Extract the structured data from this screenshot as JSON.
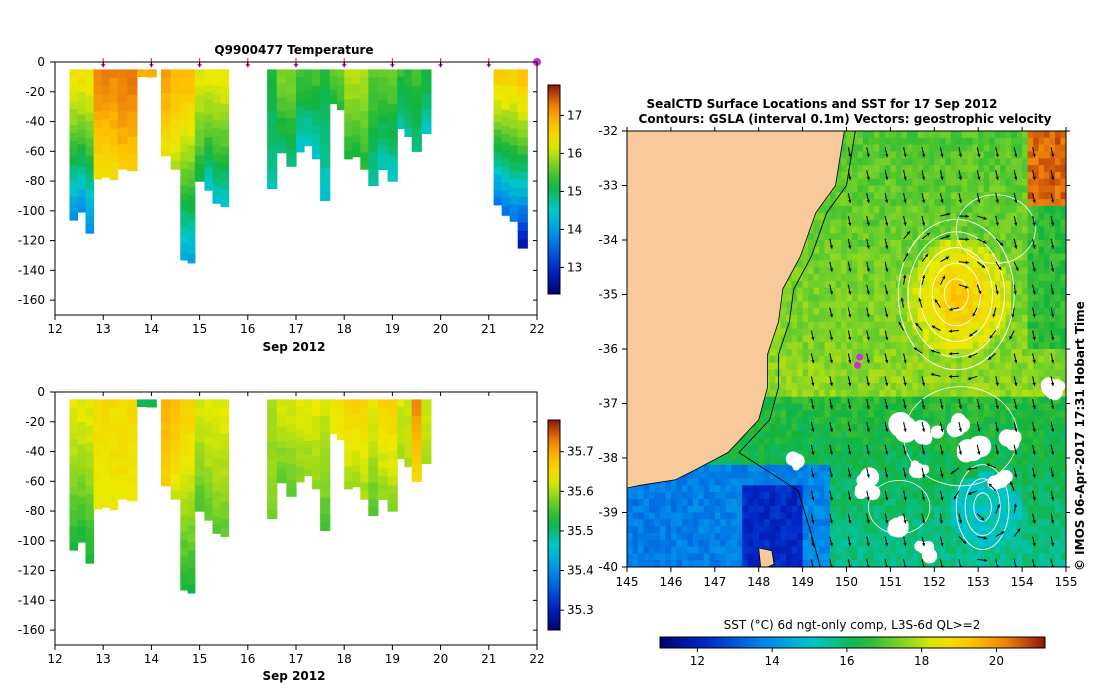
{
  "chart_data": [
    {
      "type": "heatmap",
      "panel": "depth-time",
      "title": "Q9900477  Temperature",
      "xlabel": "Sep 2012",
      "ylabel": "",
      "xlim": [
        12,
        22
      ],
      "ylim": [
        -170,
        0
      ],
      "xticks": [
        12,
        13,
        14,
        15,
        16,
        17,
        18,
        19,
        20,
        21,
        22
      ],
      "yticks": [
        0,
        -20,
        -40,
        -60,
        -80,
        -100,
        -120,
        -140,
        -160
      ],
      "markers_x": [
        13,
        14,
        15,
        16,
        17,
        18,
        19,
        20,
        21,
        22
      ],
      "colorbar": {
        "ticks": [
          13,
          14,
          15,
          16,
          17
        ],
        "range": [
          12.3,
          17.8
        ]
      },
      "profiles": [
        {
          "x0": 12.3,
          "x1": 12.8,
          "depth": 115,
          "surf": 16.4,
          "deep": 13.7
        },
        {
          "x0": 12.8,
          "x1": 13.3,
          "depth": 79,
          "surf": 17.2,
          "deep": 16.3
        },
        {
          "x0": 13.3,
          "x1": 13.7,
          "depth": 73,
          "surf": 17.3,
          "deep": 16.6
        },
        {
          "x0": 13.7,
          "x1": 14.1,
          "depth": 10,
          "surf": 17.0,
          "deep": 16.8
        },
        {
          "x0": 14.2,
          "x1": 14.4,
          "depth": 63,
          "surf": 17.0,
          "deep": 16.3
        },
        {
          "x0": 14.4,
          "x1": 14.6,
          "depth": 72,
          "surf": 16.9,
          "deep": 15.9
        },
        {
          "x0": 14.6,
          "x1": 14.9,
          "depth": 135,
          "surf": 16.8,
          "deep": 14.0
        },
        {
          "x0": 14.9,
          "x1": 15.1,
          "depth": 80,
          "surf": 16.2,
          "deep": 15.0
        },
        {
          "x0": 15.1,
          "x1": 15.6,
          "depth": 97,
          "surf": 16.3,
          "deep": 14.3
        },
        {
          "x0": 16.4,
          "x1": 16.6,
          "depth": 85,
          "surf": 15.2,
          "deep": 14.6
        },
        {
          "x0": 16.6,
          "x1": 17.0,
          "depth": 70,
          "surf": 15.7,
          "deep": 14.8
        },
        {
          "x0": 17.0,
          "x1": 17.5,
          "depth": 65,
          "surf": 15.4,
          "deep": 14.3
        },
        {
          "x0": 17.5,
          "x1": 17.7,
          "depth": 93,
          "surf": 15.2,
          "deep": 14.4
        },
        {
          "x0": 17.7,
          "x1": 18.0,
          "depth": 32,
          "surf": 15.6,
          "deep": 15.1
        },
        {
          "x0": 18.0,
          "x1": 18.5,
          "depth": 72,
          "surf": 16.0,
          "deep": 15.1
        },
        {
          "x0": 18.5,
          "x1": 18.7,
          "depth": 83,
          "surf": 15.5,
          "deep": 14.6
        },
        {
          "x0": 18.7,
          "x1": 19.1,
          "depth": 80,
          "surf": 15.6,
          "deep": 14.4
        },
        {
          "x0": 19.1,
          "x1": 19.4,
          "depth": 50,
          "surf": 15.3,
          "deep": 14.6
        },
        {
          "x0": 19.4,
          "x1": 19.6,
          "depth": 60,
          "surf": 15.4,
          "deep": 14.7
        },
        {
          "x0": 19.6,
          "x1": 19.8,
          "depth": 48,
          "surf": 15.2,
          "deep": 14.4
        },
        {
          "x0": 21.1,
          "x1": 21.6,
          "depth": 107,
          "surf": 16.6,
          "deep": 13.4
        },
        {
          "x0": 21.6,
          "x1": 21.8,
          "depth": 125,
          "surf": 16.8,
          "deep": 12.4
        }
      ]
    },
    {
      "type": "heatmap",
      "panel": "depth-time",
      "title": "",
      "xlabel": "Sep 2012",
      "ylabel": "",
      "xlim": [
        12,
        22
      ],
      "ylim": [
        -170,
        0
      ],
      "xticks": [
        12,
        13,
        14,
        15,
        16,
        17,
        18,
        19,
        20,
        21,
        22
      ],
      "yticks": [
        0,
        -20,
        -40,
        -60,
        -80,
        -100,
        -120,
        -140,
        -160
      ],
      "colorbar": {
        "ticks": [
          35.3,
          35.4,
          35.5,
          35.6,
          35.7
        ],
        "range": [
          35.25,
          35.78
        ]
      },
      "profiles": [
        {
          "x0": 12.3,
          "x1": 12.8,
          "depth": 115,
          "surf": 35.63,
          "deep": 35.52
        },
        {
          "x0": 12.8,
          "x1": 13.3,
          "depth": 79,
          "surf": 35.65,
          "deep": 35.63
        },
        {
          "x0": 13.3,
          "x1": 13.7,
          "depth": 73,
          "surf": 35.65,
          "deep": 35.64
        },
        {
          "x0": 13.7,
          "x1": 14.1,
          "depth": 10,
          "surf": 35.52,
          "deep": 35.52
        },
        {
          "x0": 14.2,
          "x1": 14.4,
          "depth": 63,
          "surf": 35.69,
          "deep": 35.66
        },
        {
          "x0": 14.4,
          "x1": 14.6,
          "depth": 72,
          "surf": 35.69,
          "deep": 35.61
        },
        {
          "x0": 14.6,
          "x1": 14.9,
          "depth": 135,
          "surf": 35.66,
          "deep": 35.52
        },
        {
          "x0": 14.9,
          "x1": 15.1,
          "depth": 80,
          "surf": 35.62,
          "deep": 35.55
        },
        {
          "x0": 15.1,
          "x1": 15.6,
          "depth": 97,
          "surf": 35.63,
          "deep": 35.56
        },
        {
          "x0": 16.4,
          "x1": 16.6,
          "depth": 85,
          "surf": 35.6,
          "deep": 35.58
        },
        {
          "x0": 16.6,
          "x1": 17.0,
          "depth": 70,
          "surf": 35.62,
          "deep": 35.56
        },
        {
          "x0": 17.0,
          "x1": 17.5,
          "depth": 65,
          "surf": 35.63,
          "deep": 35.58
        },
        {
          "x0": 17.5,
          "x1": 17.7,
          "depth": 93,
          "surf": 35.62,
          "deep": 35.55
        },
        {
          "x0": 17.7,
          "x1": 18.0,
          "depth": 32,
          "surf": 35.64,
          "deep": 35.63
        },
        {
          "x0": 18.0,
          "x1": 18.5,
          "depth": 72,
          "surf": 35.66,
          "deep": 35.59
        },
        {
          "x0": 18.5,
          "x1": 18.7,
          "depth": 83,
          "surf": 35.63,
          "deep": 35.55
        },
        {
          "x0": 18.7,
          "x1": 19.1,
          "depth": 80,
          "surf": 35.66,
          "deep": 35.58
        },
        {
          "x0": 19.1,
          "x1": 19.4,
          "depth": 50,
          "surf": 35.62,
          "deep": 35.6
        },
        {
          "x0": 19.4,
          "x1": 19.6,
          "depth": 60,
          "surf": 35.72,
          "deep": 35.63
        },
        {
          "x0": 19.6,
          "x1": 19.8,
          "depth": 48,
          "surf": 35.62,
          "deep": 35.6
        }
      ]
    },
    {
      "type": "heatmap",
      "panel": "map",
      "title": "SealCTD Surface Locations and SST for 17 Sep 2012",
      "subtitle": "Contours: GSLA (interval 0.1m) Vectors: geostrophic velocity",
      "xlabel": "",
      "ylabel": "",
      "xlim": [
        145,
        155
      ],
      "ylim": [
        -40,
        -32
      ],
      "xticks": [
        145,
        146,
        147,
        148,
        149,
        150,
        151,
        152,
        153,
        154,
        155
      ],
      "yticks": [
        -32,
        -33,
        -34,
        -35,
        -36,
        -37,
        -38,
        -39,
        -40
      ],
      "colorbar": {
        "label": "SST (°C) 6d ngt-only comp, L3S-6d QL>=2",
        "ticks": [
          12,
          14,
          16,
          18,
          20
        ],
        "range": [
          11,
          21.3
        ]
      },
      "seal_locations": [
        {
          "lon": 150.3,
          "lat": -36.15
        },
        {
          "lon": 150.25,
          "lat": -36.3
        }
      ],
      "credit": "© IMOS 06-Apr-2017 17:31 Hobart Time"
    }
  ],
  "colors": {
    "land": "#f8c99a",
    "cloud": "#ffffff",
    "marker": "#cc33cc",
    "contour": "#ffffff",
    "vector": "#000000"
  }
}
